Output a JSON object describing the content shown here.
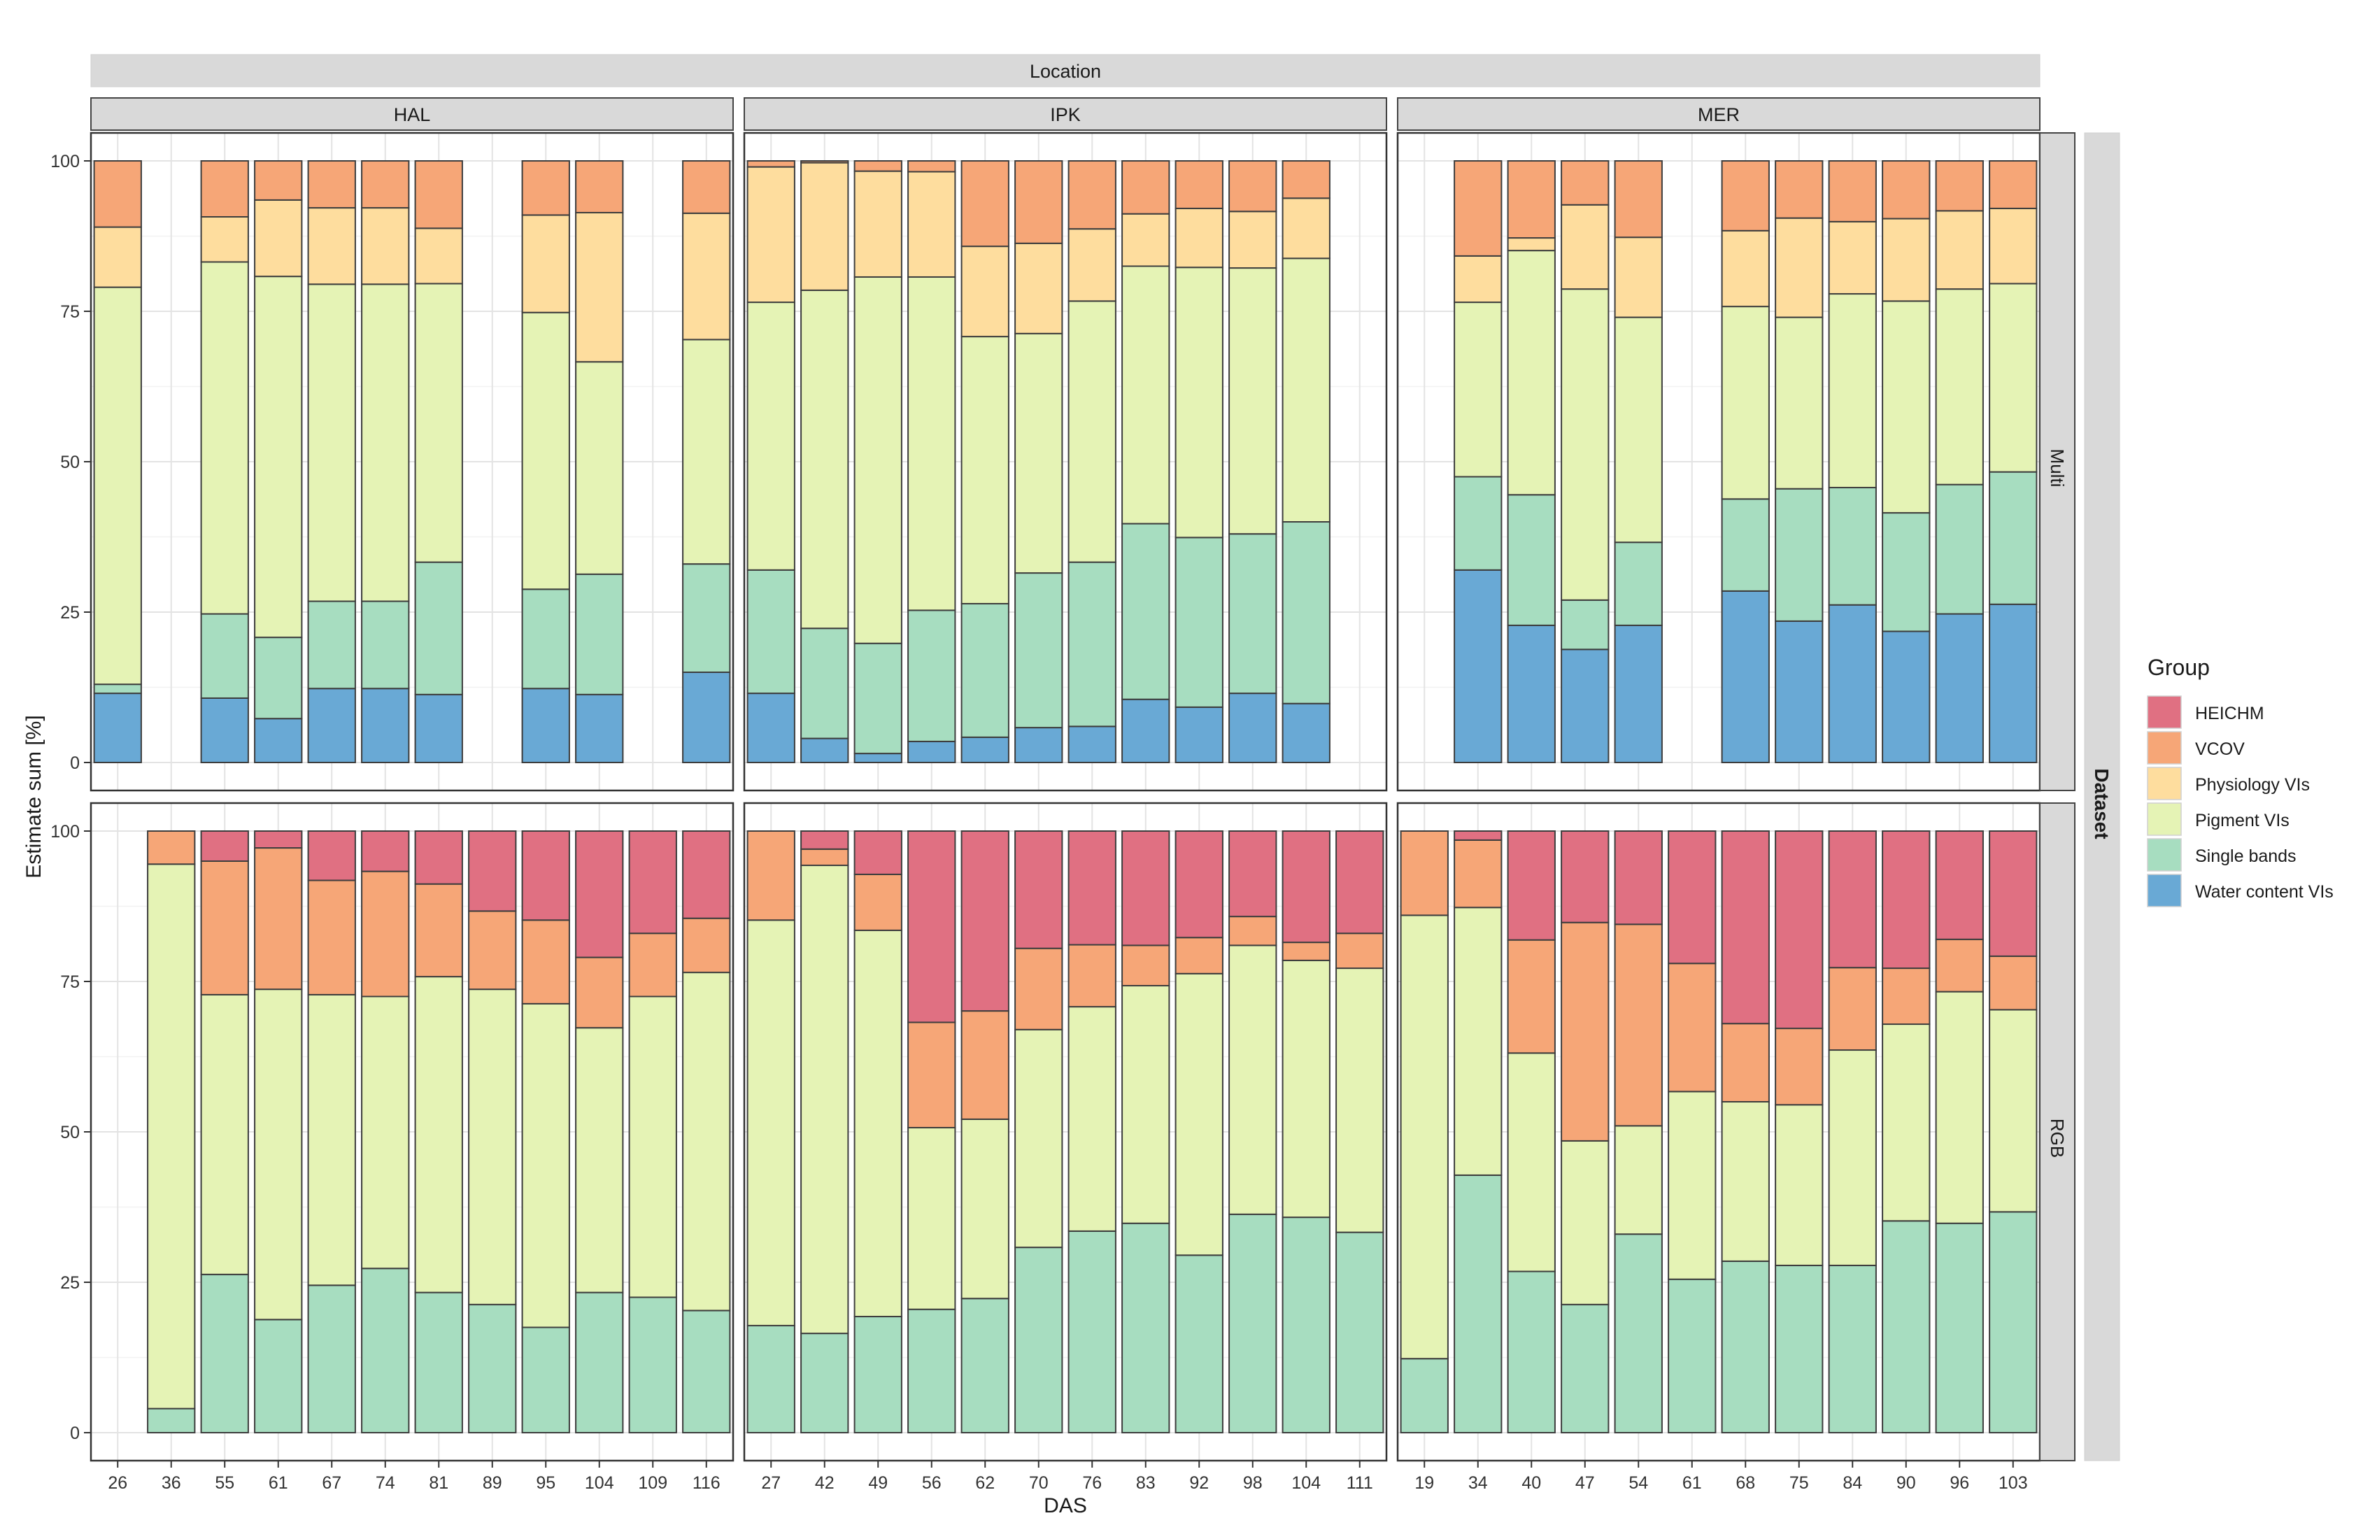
{
  "chart_data": {
    "type": "bar",
    "stacked": true,
    "title": "",
    "top_strip": "Location",
    "right_strip": "Dataset",
    "xlabel": "DAS",
    "ylabel": "Estimate sum [%]",
    "ylim": [
      0,
      100
    ],
    "yticks": [
      0,
      25,
      50,
      75,
      100
    ],
    "grid": true,
    "legend": {
      "title": "Group",
      "position": "right",
      "items": [
        {
          "name": "HEICHM",
          "color": "#e07082"
        },
        {
          "name": "VCOV",
          "color": "#f6a677"
        },
        {
          "name": "Physiology VIs",
          "color": "#fedd9e"
        },
        {
          "name": "Pigment VIs",
          "color": "#e5f3b5"
        },
        {
          "name": "Single bands",
          "color": "#a7ddc0"
        },
        {
          "name": "Water content VIs",
          "color": "#69a9d5"
        }
      ]
    },
    "stack_order": [
      "Water content VIs",
      "Single bands",
      "Pigment VIs",
      "Physiology VIs",
      "VCOV",
      "HEICHM"
    ],
    "locations": [
      "HAL",
      "IPK",
      "MER"
    ],
    "datasets": [
      "Multi",
      "RGB"
    ],
    "categories": {
      "HAL": [
        "26",
        "36",
        "55",
        "61",
        "67",
        "74",
        "81",
        "89",
        "95",
        "104",
        "109",
        "116"
      ],
      "IPK": [
        "27",
        "42",
        "49",
        "56",
        "62",
        "70",
        "76",
        "83",
        "92",
        "98",
        "104",
        "111"
      ],
      "MER": [
        "19",
        "34",
        "40",
        "47",
        "54",
        "61",
        "68",
        "75",
        "84",
        "90",
        "96",
        "103"
      ]
    },
    "panels": [
      {
        "location": "HAL",
        "dataset": "Multi",
        "bars": [
          {
            "das": "26",
            "values": [
              11.5,
              1.5,
              66,
              10,
              11,
              0
            ]
          },
          {
            "das": "36",
            "values": [
              0,
              0,
              0,
              0,
              0,
              0
            ]
          },
          {
            "das": "55",
            "values": [
              10.7,
              14,
              58.5,
              7.5,
              9.3,
              0
            ]
          },
          {
            "das": "61",
            "values": [
              7.3,
              13.5,
              60,
              12.7,
              6.5,
              0
            ]
          },
          {
            "das": "67",
            "values": [
              12.3,
              14.5,
              52.7,
              12.7,
              7.8,
              0
            ]
          },
          {
            "das": "74",
            "values": [
              12.3,
              14.5,
              52.7,
              12.7,
              7.8,
              0
            ]
          },
          {
            "das": "81",
            "values": [
              11.3,
              22,
              46.3,
              9.2,
              11.2,
              0
            ]
          },
          {
            "das": "89",
            "values": [
              0,
              0,
              0,
              0,
              0,
              0
            ]
          },
          {
            "das": "95",
            "values": [
              12.3,
              16.5,
              46,
              16.2,
              9,
              0
            ]
          },
          {
            "das": "104",
            "values": [
              11.3,
              20,
              35.3,
              24.8,
              8.6,
              0
            ]
          },
          {
            "das": "109",
            "values": [
              0,
              0,
              0,
              0,
              0,
              0
            ]
          },
          {
            "das": "116",
            "values": [
              15,
              18,
              37.3,
              21,
              8.7,
              0
            ]
          }
        ]
      },
      {
        "location": "IPK",
        "dataset": "Multi",
        "bars": [
          {
            "das": "27",
            "values": [
              11.5,
              20.5,
              44.5,
              22.5,
              1,
              0
            ]
          },
          {
            "das": "42",
            "values": [
              4,
              18.3,
              56.2,
              21.2,
              0.3,
              0
            ]
          },
          {
            "das": "49",
            "values": [
              1.5,
              18.3,
              60.9,
              17.6,
              1.7,
              0
            ]
          },
          {
            "das": "56",
            "values": [
              3.5,
              21.8,
              55.4,
              17.5,
              1.8,
              0
            ]
          },
          {
            "das": "62",
            "values": [
              4.2,
              22.2,
              44.4,
              15,
              14.2,
              0
            ]
          },
          {
            "das": "70",
            "values": [
              5.8,
              25.7,
              39.8,
              15,
              13.7,
              0
            ]
          },
          {
            "das": "76",
            "values": [
              6,
              27.3,
              43.4,
              12,
              11.3,
              0
            ]
          },
          {
            "das": "83",
            "values": [
              10.5,
              29.2,
              42.8,
              8.7,
              8.8,
              0
            ]
          },
          {
            "das": "92",
            "values": [
              9.2,
              28.2,
              44.9,
              9.8,
              7.9,
              0
            ]
          },
          {
            "das": "98",
            "values": [
              11.5,
              26.5,
              44.2,
              9.4,
              8.4,
              0
            ]
          },
          {
            "das": "104",
            "values": [
              9.8,
              30.2,
              43.8,
              10,
              6.2,
              0
            ]
          },
          {
            "das": "111",
            "values": [
              0,
              0,
              0,
              0,
              0,
              0
            ]
          }
        ]
      },
      {
        "location": "MER",
        "dataset": "Multi",
        "bars": [
          {
            "das": "19",
            "values": [
              0,
              0,
              0,
              0,
              0,
              0
            ]
          },
          {
            "das": "34",
            "values": [
              32,
              15.5,
              29,
              7.7,
              15.8,
              0
            ]
          },
          {
            "das": "40",
            "values": [
              22.8,
              21.7,
              40.6,
              2.1,
              12.8,
              0
            ]
          },
          {
            "das": "47",
            "values": [
              18.8,
              8.2,
              51.7,
              14,
              7.3,
              0
            ]
          },
          {
            "das": "54",
            "values": [
              22.8,
              13.8,
              37.4,
              13.3,
              12.7,
              0
            ]
          },
          {
            "das": "61",
            "values": [
              0,
              0,
              0,
              0,
              0,
              0
            ]
          },
          {
            "das": "68",
            "values": [
              28.5,
              15.3,
              32,
              12.6,
              11.6,
              0
            ]
          },
          {
            "das": "75",
            "values": [
              23.5,
              22,
              28.5,
              16.5,
              9.5,
              0
            ]
          },
          {
            "das": "84",
            "values": [
              26.2,
              19.5,
              32.2,
              12,
              10.1,
              0
            ]
          },
          {
            "das": "90",
            "values": [
              21.8,
              19.7,
              35.2,
              13.7,
              9.6,
              0
            ]
          },
          {
            "das": "96",
            "values": [
              24.7,
              21.5,
              32.5,
              13,
              8.3,
              0
            ]
          },
          {
            "das": "103",
            "values": [
              26.3,
              22,
              31.3,
              12.5,
              7.9,
              0
            ]
          }
        ]
      },
      {
        "location": "HAL",
        "dataset": "RGB",
        "bars": [
          {
            "das": "26",
            "values": [
              0,
              0,
              0,
              0,
              0,
              0
            ]
          },
          {
            "das": "36",
            "values": [
              0,
              4,
              90.5,
              0,
              5.5,
              0
            ]
          },
          {
            "das": "55",
            "values": [
              0,
              26.3,
              46.5,
              0,
              22.2,
              5
            ]
          },
          {
            "das": "61",
            "values": [
              0,
              18.8,
              54.9,
              0,
              23.5,
              2.8
            ]
          },
          {
            "das": "67",
            "values": [
              0,
              24.5,
              48.3,
              0,
              19,
              8.2
            ]
          },
          {
            "das": "74",
            "values": [
              0,
              27.3,
              45.2,
              0,
              20.8,
              6.7
            ]
          },
          {
            "das": "81",
            "values": [
              0,
              23.3,
              52.5,
              0,
              15.4,
              8.8
            ]
          },
          {
            "das": "89",
            "values": [
              0,
              21.3,
              52.4,
              0,
              13,
              13.3
            ]
          },
          {
            "das": "95",
            "values": [
              0,
              17.5,
              53.8,
              0,
              13.9,
              14.8
            ]
          },
          {
            "das": "104",
            "values": [
              0,
              23.3,
              44,
              0,
              11.7,
              21
            ]
          },
          {
            "das": "109",
            "values": [
              0,
              22.5,
              50,
              0,
              10.5,
              17
            ]
          },
          {
            "das": "116",
            "values": [
              0,
              20.3,
              56.2,
              0,
              9,
              14.5
            ]
          }
        ]
      },
      {
        "location": "IPK",
        "dataset": "RGB",
        "bars": [
          {
            "das": "27",
            "values": [
              0,
              17.8,
              67.4,
              0,
              14.8,
              0
            ]
          },
          {
            "das": "42",
            "values": [
              0,
              16.5,
              77.8,
              0,
              2.7,
              3
            ]
          },
          {
            "das": "49",
            "values": [
              0,
              19.3,
              64.2,
              0,
              9.3,
              7.2
            ]
          },
          {
            "das": "56",
            "values": [
              0,
              20.5,
              30.2,
              0,
              17.5,
              31.8
            ]
          },
          {
            "das": "62",
            "values": [
              0,
              22.3,
              29.8,
              0,
              18,
              29.9
            ]
          },
          {
            "das": "70",
            "values": [
              0,
              30.8,
              36.2,
              0,
              13.5,
              19.5
            ]
          },
          {
            "das": "76",
            "values": [
              0,
              33.5,
              37.3,
              0,
              10.3,
              18.9
            ]
          },
          {
            "das": "83",
            "values": [
              0,
              34.8,
              39.5,
              0,
              6.7,
              19
            ]
          },
          {
            "das": "92",
            "values": [
              0,
              29.5,
              46.8,
              0,
              6,
              17.7
            ]
          },
          {
            "das": "98",
            "values": [
              0,
              36.3,
              44.7,
              0,
              4.8,
              14.2
            ]
          },
          {
            "das": "104",
            "values": [
              0,
              35.8,
              42.7,
              0,
              3,
              18.5
            ]
          },
          {
            "das": "111",
            "values": [
              0,
              33.3,
              43.9,
              0,
              5.8,
              17
            ]
          }
        ]
      },
      {
        "location": "MER",
        "dataset": "RGB",
        "bars": [
          {
            "das": "19",
            "values": [
              0,
              12.3,
              73.7,
              0,
              14,
              0
            ]
          },
          {
            "das": "34",
            "values": [
              0,
              42.8,
              44.5,
              0,
              11.2,
              1.5
            ]
          },
          {
            "das": "40",
            "values": [
              0,
              26.8,
              36.3,
              0,
              18.8,
              18.1
            ]
          },
          {
            "das": "47",
            "values": [
              0,
              21.3,
              27.2,
              0,
              36.3,
              15.2
            ]
          },
          {
            "das": "54",
            "values": [
              0,
              33,
              18,
              0,
              33.5,
              15.5
            ]
          },
          {
            "das": "61",
            "values": [
              0,
              25.5,
              31.2,
              0,
              21.3,
              22
            ]
          },
          {
            "das": "68",
            "values": [
              0,
              28.5,
              26.5,
              0,
              13,
              32
            ]
          },
          {
            "das": "75",
            "values": [
              0,
              27.8,
              26.7,
              0,
              12.7,
              32.8
            ]
          },
          {
            "das": "84",
            "values": [
              0,
              27.8,
              35.8,
              0,
              13.7,
              22.7
            ]
          },
          {
            "das": "90",
            "values": [
              0,
              35.2,
              32.7,
              0,
              9.3,
              22.8
            ]
          },
          {
            "das": "96",
            "values": [
              0,
              34.8,
              38.5,
              0,
              8.7,
              18
            ]
          },
          {
            "das": "103",
            "values": [
              0,
              36.7,
              33.6,
              0,
              8.9,
              20.8
            ]
          }
        ]
      }
    ]
  }
}
